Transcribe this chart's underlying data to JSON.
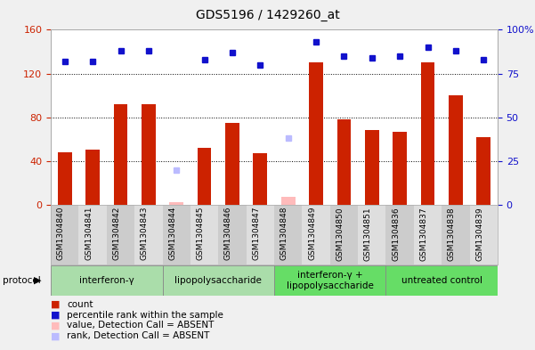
{
  "title": "GDS5196 / 1429260_at",
  "samples": [
    "GSM1304840",
    "GSM1304841",
    "GSM1304842",
    "GSM1304843",
    "GSM1304844",
    "GSM1304845",
    "GSM1304846",
    "GSM1304847",
    "GSM1304848",
    "GSM1304849",
    "GSM1304850",
    "GSM1304851",
    "GSM1304836",
    "GSM1304837",
    "GSM1304838",
    "GSM1304839"
  ],
  "count_values": [
    48,
    50,
    92,
    92,
    null,
    52,
    75,
    47,
    null,
    130,
    78,
    68,
    67,
    130,
    100,
    62
  ],
  "rank_values": [
    82,
    82,
    88,
    88,
    null,
    83,
    87,
    80,
    null,
    93,
    85,
    84,
    85,
    90,
    88,
    83
  ],
  "absent_count": [
    null,
    null,
    null,
    null,
    2,
    null,
    null,
    null,
    7,
    null,
    null,
    null,
    null,
    null,
    null,
    null
  ],
  "absent_rank": [
    null,
    null,
    null,
    null,
    20,
    null,
    null,
    null,
    38,
    null,
    null,
    null,
    null,
    null,
    null,
    null
  ],
  "is_absent": [
    false,
    false,
    false,
    false,
    true,
    false,
    false,
    false,
    true,
    false,
    false,
    false,
    false,
    false,
    false,
    false
  ],
  "protocols": [
    {
      "label": "interferon-γ",
      "start": 0,
      "end": 4
    },
    {
      "label": "lipopolysaccharide",
      "start": 4,
      "end": 8
    },
    {
      "label": "interferon-γ +\nlipopolysaccharide",
      "start": 8,
      "end": 12
    },
    {
      "label": "untreated control",
      "start": 12,
      "end": 16
    }
  ],
  "proto_colors": [
    "#aaddaa",
    "#aaddaa",
    "#66dd66",
    "#66dd66"
  ],
  "ylim_left": [
    0,
    160
  ],
  "ylim_right": [
    0,
    100
  ],
  "yticks_left": [
    0,
    40,
    80,
    120,
    160
  ],
  "yticks_right": [
    0,
    25,
    50,
    75,
    100
  ],
  "bar_color": "#cc2200",
  "rank_color": "#1111cc",
  "absent_bar_color": "#ffbbbb",
  "absent_rank_color": "#bbbbff",
  "plot_bg_color": "#ffffff",
  "fig_bg_color": "#f0f0f0",
  "label_area_color": "#d8d8d8",
  "ylabel_left_color": "#cc2200",
  "ylabel_right_color": "#1111cc"
}
